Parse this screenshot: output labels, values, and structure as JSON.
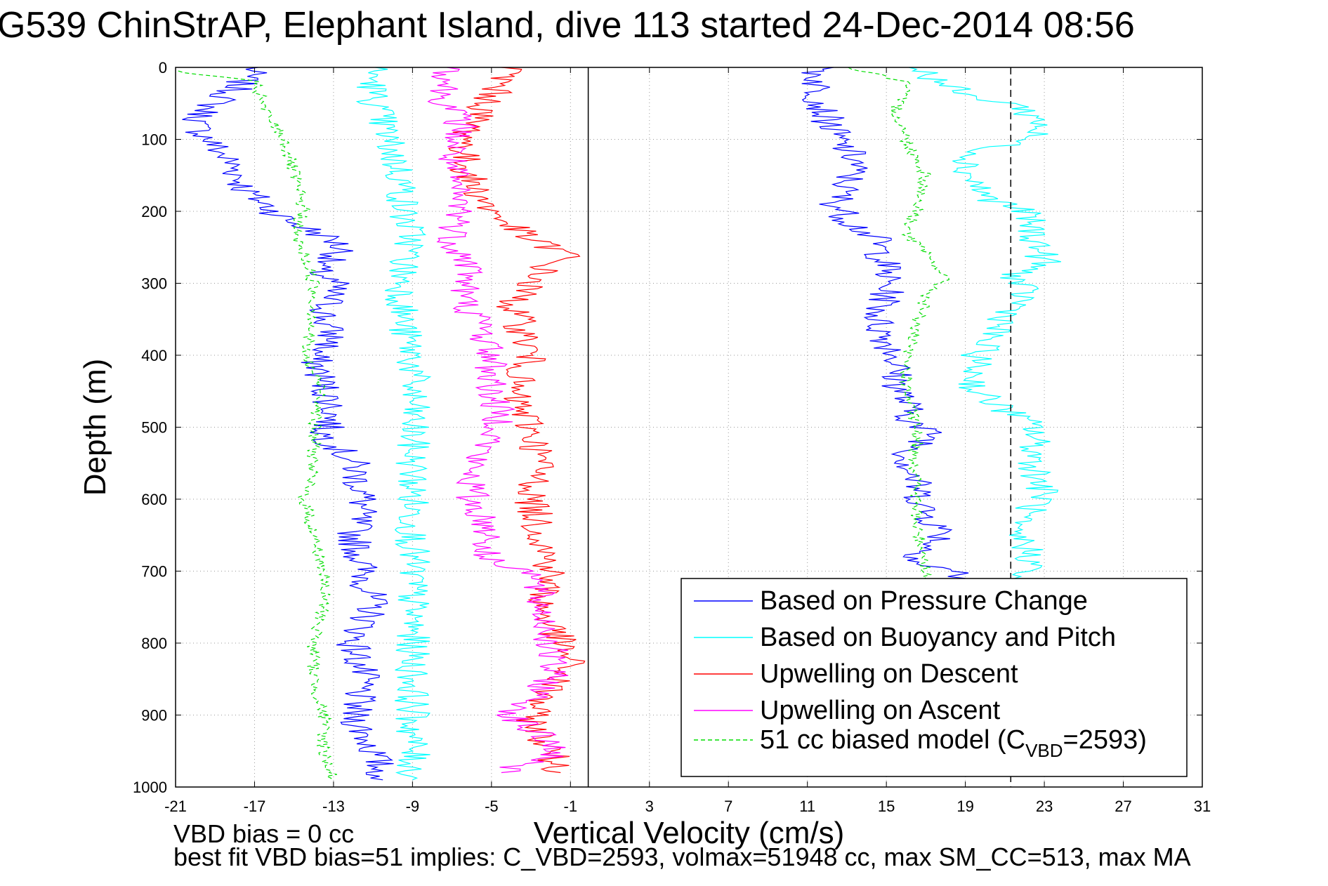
{
  "figure": {
    "title": "G539 ChinStrAP, Elephant Island, dive 113 started 24-Dec-2014 08:56",
    "note_bias": "VBD bias = 0 cc",
    "note_fit": "best fit VBD bias=51 implies: C_VBD=2593, volmax=51948 cc, max SM_CC=513, max MA"
  },
  "chart_data": {
    "type": "line",
    "xlabel": "Vertical Velocity (cm/s)",
    "ylabel": "Depth (m)",
    "xlim": [
      -21,
      31
    ],
    "ylim": [
      0,
      1000
    ],
    "y_reversed": true,
    "grid": true,
    "xticks": [
      -21,
      -17,
      -13,
      -9,
      -5,
      -1,
      3,
      7,
      11,
      15,
      19,
      23,
      27,
      31
    ],
    "yticks": [
      0,
      100,
      200,
      300,
      400,
      500,
      600,
      700,
      800,
      900,
      1000
    ],
    "reference_lines": [
      {
        "x": -0.1,
        "style": "solid",
        "color": "#000000"
      },
      {
        "x": 21.3,
        "style": "dashed",
        "color": "#000000"
      }
    ],
    "legend": {
      "placement": "bottom-right",
      "entries": [
        {
          "label": "Based on Pressure Change",
          "color": "#0000ff",
          "dash": "solid"
        },
        {
          "label": "Based on Buoyancy and Pitch",
          "color": "#00ffff",
          "dash": "solid"
        },
        {
          "label": "Upwelling on Descent",
          "color": "#ff0000",
          "dash": "solid"
        },
        {
          "label": "Upwelling on Ascent",
          "color": "#ff00ff",
          "dash": "solid"
        },
        {
          "label_main": "51 cc biased model (C",
          "label_sub": "VBD",
          "label_tail": "=2593)",
          "color": "#00dd00",
          "dash": "dashed"
        }
      ]
    },
    "series": [
      {
        "name": "Based on Pressure Change (descent)",
        "color": "#0000ff",
        "dash": "solid",
        "x": [
          -17,
          -18,
          -19.5,
          -20,
          -19,
          -18,
          -17.5,
          -16.5,
          -15.5,
          -13,
          -12.5,
          -14,
          -13,
          -13.5,
          -13,
          -14,
          -13.5,
          -13,
          -13.5,
          -12,
          -11.5,
          -12,
          -11.5,
          -11,
          -12,
          -11.5,
          -12,
          -11,
          -10.5
        ],
        "y": [
          0,
          30,
          60,
          80,
          110,
          140,
          170,
          190,
          210,
          240,
          255,
          280,
          300,
          350,
          380,
          400,
          440,
          480,
          510,
          550,
          600,
          650,
          700,
          750,
          800,
          850,
          900,
          950,
          990
        ]
      },
      {
        "name": "Based on Pressure Change (ascent)",
        "color": "#0000ff",
        "dash": "solid",
        "x": [
          11.5,
          11.5,
          11.8,
          12.5,
          13.5,
          13,
          12.5,
          13,
          14.5,
          15,
          15,
          14.5,
          15,
          15.5,
          15.5,
          16,
          16.5,
          17.5,
          16,
          16.5,
          17,
          18,
          17,
          16.5,
          18.5,
          19
        ],
        "y": [
          0,
          30,
          60,
          100,
          130,
          160,
          190,
          210,
          240,
          280,
          320,
          350,
          380,
          400,
          430,
          470,
          500,
          510,
          540,
          580,
          620,
          650,
          670,
          690,
          700,
          715
        ]
      },
      {
        "name": "Based on Buoyancy and Pitch (descent)",
        "color": "#00ffff",
        "dash": "solid",
        "x": [
          -11,
          -11,
          -10.5,
          -10,
          -9.5,
          -9.5,
          -9,
          -9.5,
          -9.5,
          -9.5,
          -9,
          -9,
          -9,
          -9,
          -9,
          -9,
          -9,
          -9,
          -9,
          -9,
          -9,
          -9
        ],
        "y": [
          0,
          40,
          80,
          120,
          160,
          200,
          240,
          280,
          320,
          360,
          400,
          450,
          500,
          550,
          600,
          650,
          700,
          750,
          800,
          850,
          900,
          990
        ]
      },
      {
        "name": "Based on Buoyancy and Pitch (ascent)",
        "color": "#00ffff",
        "dash": "solid",
        "x": [
          16.5,
          19,
          21.5,
          23,
          22,
          19.5,
          19,
          19.5,
          20,
          22,
          23,
          21.5,
          22,
          20,
          19.5,
          19.5,
          22.5,
          22.5,
          23,
          21,
          22,
          22.5,
          21.5
        ],
        "y": [
          0,
          40,
          50,
          80,
          100,
          120,
          140,
          160,
          180,
          200,
          270,
          290,
          320,
          380,
          410,
          450,
          500,
          550,
          600,
          640,
          660,
          690,
          710
        ]
      },
      {
        "name": "Upwelling on Descent",
        "color": "#ff0000",
        "dash": "solid",
        "x": [
          -4,
          -5,
          -6,
          -6.5,
          -6,
          -5,
          -4,
          -3,
          -2,
          -1,
          -2,
          -3,
          -4,
          -3.5,
          -3,
          -4,
          -3,
          -2.5,
          -3,
          -2.5,
          -2,
          -2.5,
          -1.5,
          -1,
          -2,
          -3,
          -1.5
        ],
        "y": [
          0,
          40,
          80,
          120,
          160,
          200,
          220,
          240,
          250,
          260,
          270,
          300,
          330,
          360,
          400,
          450,
          500,
          550,
          600,
          650,
          700,
          750,
          800,
          830,
          860,
          900,
          980
        ]
      },
      {
        "name": "Upwelling on Ascent",
        "color": "#ff00ff",
        "dash": "solid",
        "x": [
          -7,
          -7.5,
          -6.5,
          -7,
          -7,
          -6.5,
          -7,
          -6,
          -6.5,
          -5.5,
          -5,
          -5,
          -4.5,
          -6,
          -6,
          -5,
          -5.5,
          -3,
          -2.5,
          -2,
          -2,
          -3,
          -4,
          -1.5,
          -4.5
        ],
        "y": [
          0,
          40,
          80,
          120,
          160,
          200,
          240,
          280,
          320,
          360,
          400,
          450,
          500,
          550,
          600,
          650,
          680,
          700,
          750,
          800,
          850,
          880,
          900,
          950,
          980
        ]
      },
      {
        "name": "51 cc biased model (descent)",
        "color": "#00dd00",
        "dash": "dashed",
        "x": [
          -21,
          -17,
          -16.5,
          -15.5,
          -15,
          -14.5,
          -15,
          -14.5,
          -14,
          -14,
          -14.5,
          -13.5,
          -14,
          -14,
          -14.5,
          -14,
          -13.5,
          -13.5,
          -14,
          -14,
          -13.5,
          -13.5,
          -13
        ],
        "y": [
          5,
          20,
          60,
          100,
          150,
          200,
          230,
          260,
          300,
          350,
          400,
          450,
          500,
          550,
          600,
          650,
          700,
          750,
          800,
          850,
          900,
          950,
          990
        ]
      },
      {
        "name": "51 cc biased model (ascent)",
        "color": "#00dd00",
        "dash": "dashed",
        "x": [
          13,
          16,
          15.5,
          16,
          17,
          16.5,
          16,
          17,
          18,
          17,
          16.5,
          16,
          16,
          16.5,
          16.5,
          16.5,
          16.5,
          17,
          17
        ],
        "y": [
          0,
          20,
          60,
          100,
          150,
          200,
          230,
          260,
          290,
          320,
          360,
          400,
          450,
          500,
          550,
          600,
          640,
          680,
          710
        ]
      }
    ]
  }
}
